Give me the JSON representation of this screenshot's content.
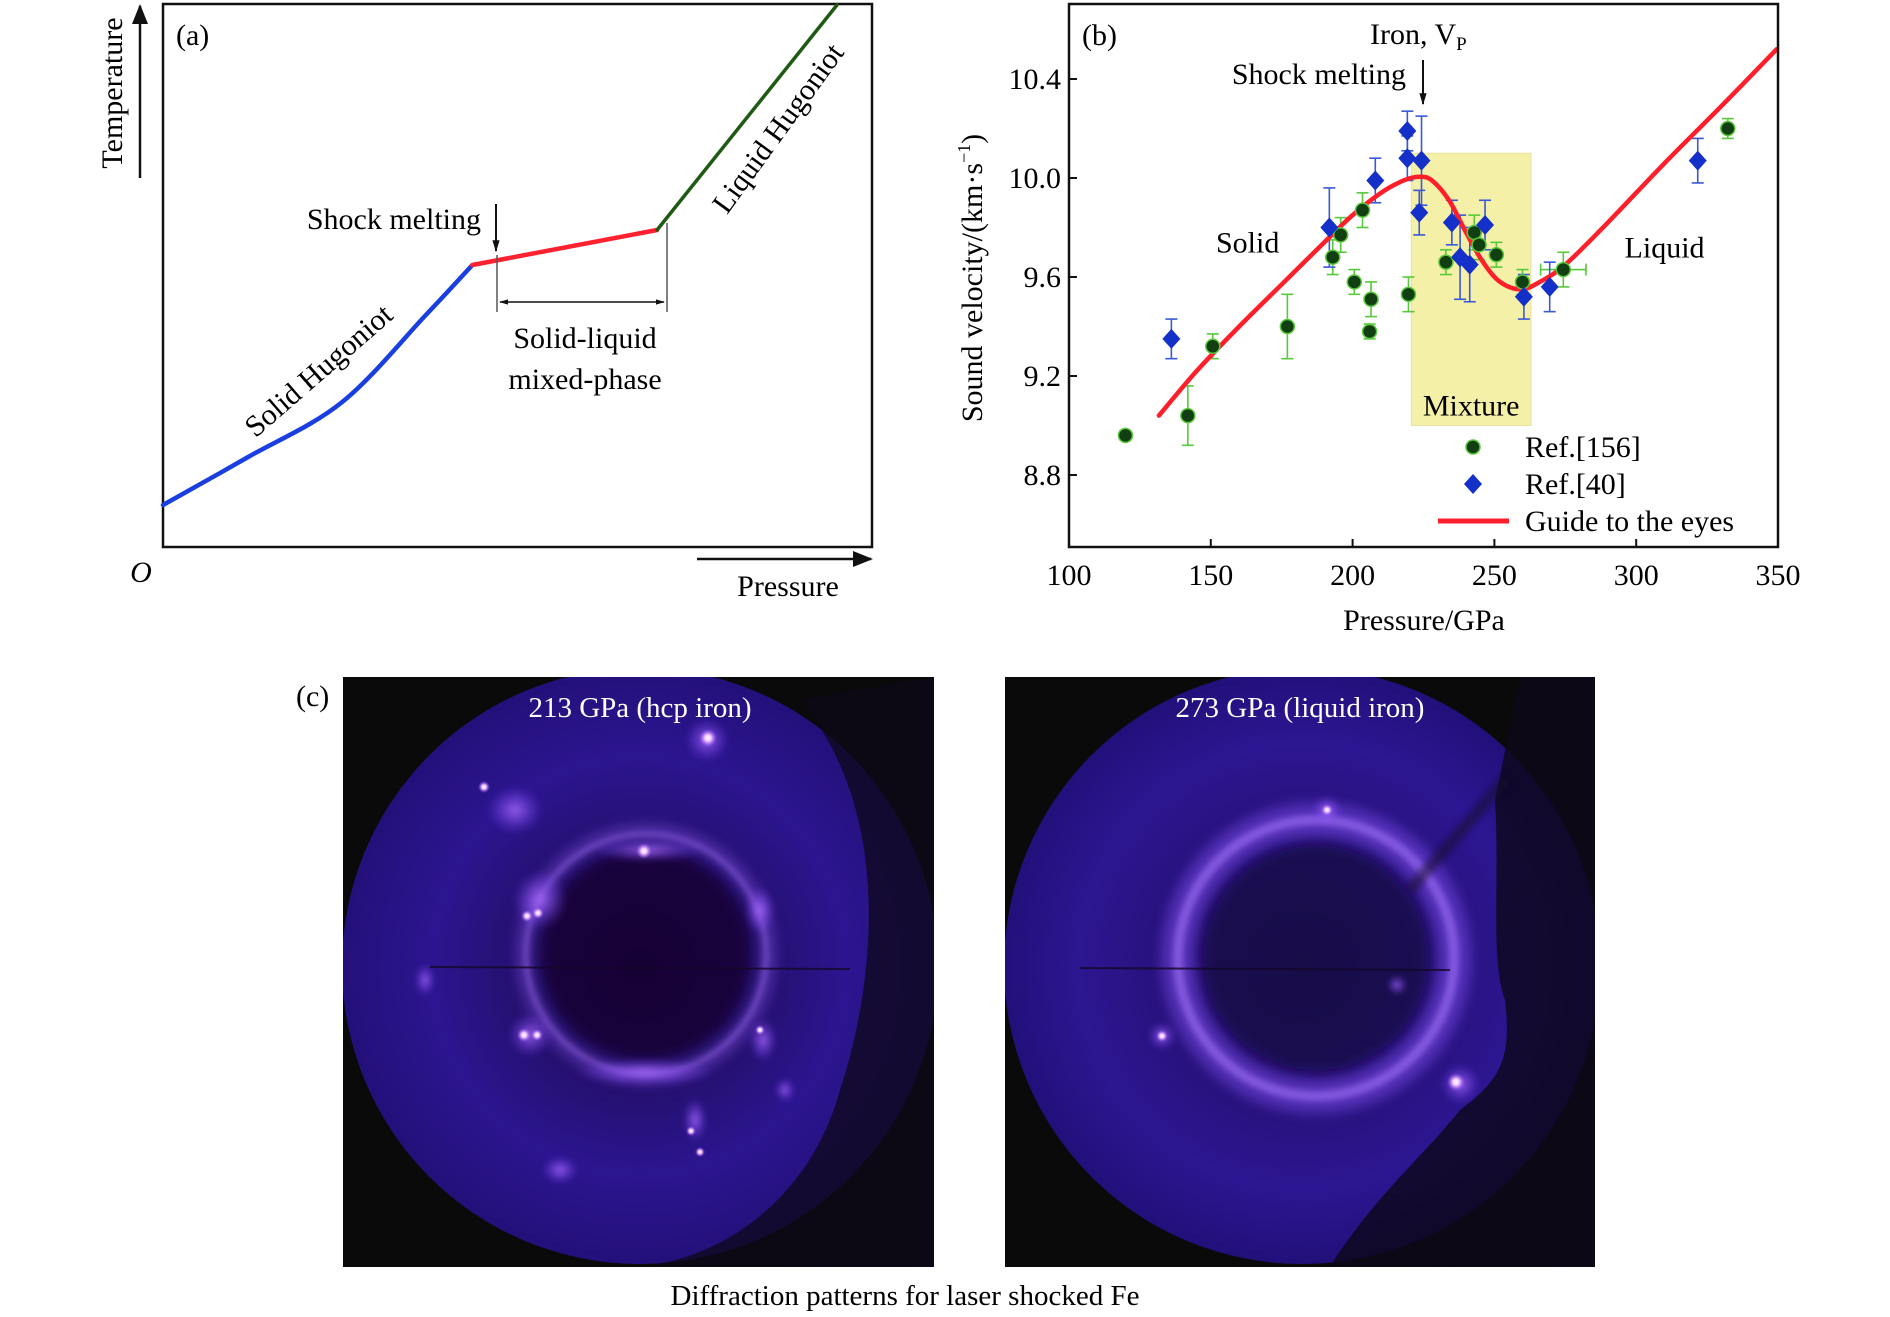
{
  "figure_caption": "Diffraction patterns for laser shocked Fe",
  "chart_data": [
    {
      "panel": "(a)",
      "type": "line",
      "title": "",
      "xlabel": "Pressure",
      "ylabel": "Temperature",
      "origin_label": "O",
      "schematic": true,
      "segments": [
        {
          "name": "Solid Hugoniot",
          "color": "#1a3fe0",
          "points": [
            [
              0,
              0.0
            ],
            [
              0.125,
              0.095
            ],
            [
              0.265,
              0.205
            ],
            [
              0.39,
              0.38
            ],
            [
              0.459,
              0.48
            ]
          ]
        },
        {
          "name": "Solid-liquid mixed-phase",
          "color": "#ff2030",
          "points": [
            [
              0.459,
              0.48
            ],
            [
              0.733,
              0.55
            ]
          ]
        },
        {
          "name": "Liquid Hugoniot",
          "color": "#1f5a12",
          "points": [
            [
              0.733,
              0.55
            ],
            [
              1.0,
              1.0
            ]
          ]
        }
      ],
      "annotations": [
        {
          "text": "Shock melting",
          "type": "arrow-label"
        },
        {
          "text": "Solid-liquid",
          "type": "label"
        },
        {
          "text": "mixed-phase",
          "type": "label"
        },
        {
          "text": "Solid Hugoniot",
          "type": "curve-label"
        },
        {
          "text": "Liquid Hugoniot",
          "type": "curve-label"
        }
      ]
    },
    {
      "panel": "(b)",
      "type": "scatter",
      "title": "Iron, V",
      "title_subscript": "P",
      "xlabel": "Pressure/GPa",
      "ylabel": "Sound velocity/(km·s",
      "ylabel_sup": "−1",
      "ylabel_close": ")",
      "xlim": [
        100,
        350
      ],
      "ylim": [
        8.55,
        10.72
      ],
      "xticks": [
        100,
        150,
        200,
        250,
        300,
        350
      ],
      "xtick_labels": [
        "100",
        "150",
        "200",
        "250",
        "300",
        "350"
      ],
      "yticks": [
        8.8,
        9.2,
        9.6,
        10.0,
        10.4
      ],
      "ytick_labels": [
        "8.8",
        "9.2",
        "9.6",
        "10.0",
        "10.4"
      ],
      "grid": false,
      "legend_position": "bottom-right",
      "region": {
        "label": "Mixture",
        "x": [
          220.7,
          262.9
        ],
        "y": [
          9.0,
          10.1
        ],
        "color": "#f5f0a8"
      },
      "annotations": [
        {
          "text": "Shock melting",
          "x": 223.5
        },
        {
          "text": "Solid",
          "x": 163,
          "y": 9.74
        },
        {
          "text": "Liquid",
          "x": 310,
          "y": 9.72
        }
      ],
      "series": [
        {
          "name": "Ref.[156]",
          "marker": "circle",
          "color": "#123f12",
          "errcolor": "#59c83a",
          "points": [
            {
              "x": 119.9,
              "y": 8.96,
              "err": 0.02
            },
            {
              "x": 141.9,
              "y": 9.04,
              "err": 0.12
            },
            {
              "x": 150.7,
              "y": 9.32,
              "err": 0.05
            },
            {
              "x": 177.0,
              "y": 9.4,
              "err": 0.13
            },
            {
              "x": 193.0,
              "y": 9.68,
              "err": 0.07
            },
            {
              "x": 195.8,
              "y": 9.77,
              "err": 0.07
            },
            {
              "x": 200.6,
              "y": 9.58,
              "err": 0.05
            },
            {
              "x": 203.5,
              "y": 9.87,
              "err": 0.07
            },
            {
              "x": 206.0,
              "y": 9.38,
              "err": 0.03
            },
            {
              "x": 206.5,
              "y": 9.51,
              "err": 0.07
            },
            {
              "x": 219.7,
              "y": 9.53,
              "err": 0.07
            },
            {
              "x": 232.9,
              "y": 9.66,
              "err": 0.05
            },
            {
              "x": 242.9,
              "y": 9.78,
              "err": 0.07
            },
            {
              "x": 244.6,
              "y": 9.73,
              "err": 0.06
            },
            {
              "x": 250.7,
              "y": 9.69,
              "err": 0.05
            },
            {
              "x": 259.9,
              "y": 9.58,
              "err": 0.05
            },
            {
              "x": 274.3,
              "y": 9.63,
              "err": 0.07,
              "xerr": 8
            },
            {
              "x": 332.3,
              "y": 10.2,
              "err": 0.04
            }
          ]
        },
        {
          "name": "Ref.[40]",
          "marker": "diamond",
          "color": "#1530c8",
          "errcolor": "#3a58d8",
          "points": [
            {
              "x": 136.1,
              "y": 9.35,
              "err": 0.08
            },
            {
              "x": 191.8,
              "y": 9.8,
              "err": 0.16
            },
            {
              "x": 208.0,
              "y": 9.99,
              "err": 0.09
            },
            {
              "x": 219.3,
              "y": 10.19,
              "err": 0.08
            },
            {
              "x": 219.3,
              "y": 10.08,
              "err": 0.09
            },
            {
              "x": 224.3,
              "y": 10.07,
              "err": 0.18
            },
            {
              "x": 223.5,
              "y": 9.86,
              "err": 0.09
            },
            {
              "x": 235.0,
              "y": 9.82,
              "err": 0.09
            },
            {
              "x": 237.9,
              "y": 9.68,
              "err": 0.17
            },
            {
              "x": 241.3,
              "y": 9.65,
              "err": 0.15
            },
            {
              "x": 246.7,
              "y": 9.81,
              "err": 0.1
            },
            {
              "x": 260.4,
              "y": 9.52,
              "err": 0.09
            },
            {
              "x": 269.5,
              "y": 9.56,
              "err": 0.1
            },
            {
              "x": 321.7,
              "y": 10.07,
              "err": 0.09
            }
          ]
        },
        {
          "name": "Guide to the eyes",
          "marker": "line",
          "color": "#ff1f2a",
          "points": [
            {
              "x": 131.7,
              "y": 9.04
            },
            {
              "x": 145,
              "y": 9.22
            },
            {
              "x": 160,
              "y": 9.4
            },
            {
              "x": 175,
              "y": 9.57
            },
            {
              "x": 190,
              "y": 9.74
            },
            {
              "x": 200,
              "y": 9.85
            },
            {
              "x": 210,
              "y": 9.94
            },
            {
              "x": 218,
              "y": 9.99
            },
            {
              "x": 223.5,
              "y": 10.005
            },
            {
              "x": 228,
              "y": 9.99
            },
            {
              "x": 234,
              "y": 9.91
            },
            {
              "x": 240,
              "y": 9.78
            },
            {
              "x": 246,
              "y": 9.66
            },
            {
              "x": 252,
              "y": 9.58
            },
            {
              "x": 259.3,
              "y": 9.55
            },
            {
              "x": 266,
              "y": 9.58
            },
            {
              "x": 275,
              "y": 9.65
            },
            {
              "x": 290,
              "y": 9.82
            },
            {
              "x": 310,
              "y": 10.06
            },
            {
              "x": 330,
              "y": 10.29
            },
            {
              "x": 349.5,
              "y": 10.52
            }
          ]
        }
      ]
    }
  ],
  "panel_c": {
    "label": "(c)",
    "images": [
      {
        "caption": "213 GPa (hcp iron)",
        "pattern": "textured-rings"
      },
      {
        "caption": "273 GPa (liquid iron)",
        "pattern": "diffuse-ring"
      }
    ]
  }
}
